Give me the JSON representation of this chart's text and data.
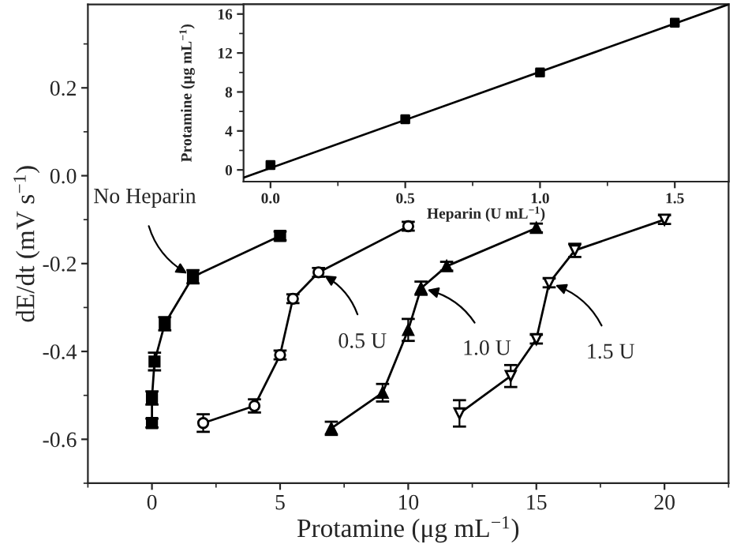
{
  "chart_data": [
    {
      "type": "line",
      "xlabel": "Protamine (μg mL$^{−1}$)",
      "ylabel": "dE/dt (mV s$^{−1}$)",
      "xlim": [
        -2.5,
        22.5
      ],
      "ylim": [
        -0.7,
        0.39
      ],
      "xticks": [
        0,
        5,
        10,
        15,
        20
      ],
      "yticks": [
        {
          "value": -0.6,
          "label": "-0.6"
        },
        {
          "value": -0.4,
          "label": "-0.4"
        },
        {
          "value": -0.2,
          "label": "-0.2"
        },
        {
          "value": 0.0,
          "label": "0.0"
        },
        {
          "value": 0.2,
          "label": "0.2"
        }
      ],
      "grid": false,
      "legend": false,
      "line_style": "solid",
      "series": [
        {
          "color": "#000000",
          "marker": "square",
          "x": [
            0,
            0,
            0.1,
            0.5,
            1.6,
            5
          ],
          "values": [
            -0.563,
            -0.506,
            -0.423,
            -0.337,
            -0.23,
            -0.137
          ],
          "errors": [
            0.01,
            0.015,
            0.02,
            0.015,
            0.015,
            0.01
          ]
        },
        {
          "color": "#000000",
          "marker": "circle",
          "x": [
            2,
            4,
            5,
            5.5,
            6.5,
            10
          ],
          "values": [
            -0.563,
            -0.524,
            -0.408,
            -0.28,
            -0.22,
            -0.115
          ],
          "errors": [
            0.02,
            0.015,
            0.01,
            0.01,
            0.01,
            0.01
          ]
        },
        {
          "color": "#000000",
          "marker": "triangle",
          "x": [
            7,
            9,
            10,
            10.5,
            11.5,
            15
          ],
          "values": [
            -0.575,
            -0.494,
            -0.351,
            -0.256,
            -0.206,
            -0.119
          ],
          "errors": [
            0.015,
            0.02,
            0.025,
            0.015,
            0.01,
            0.01
          ]
        },
        {
          "color": "#000000",
          "marker": "triangle_down",
          "x": [
            12,
            14,
            15,
            15.5,
            16.5,
            20
          ],
          "values": [
            -0.541,
            -0.456,
            -0.372,
            -0.244,
            -0.17,
            -0.1
          ],
          "errors": [
            0.03,
            0.025,
            0.01,
            0.01,
            0.015,
            0.01
          ]
        }
      ],
      "annotations": [
        {
          "text": "No Heparin",
          "x": 1.6,
          "y": -0.23
        },
        {
          "text": "0.5 U",
          "x": 6.5,
          "y": -0.22
        },
        {
          "text": "1.0 U",
          "x": 10.5,
          "y": -0.256
        },
        {
          "text": "1.5 U",
          "x": 15.5,
          "y": -0.244
        }
      ]
    },
    {
      "type": "line",
      "xlabel": "Heparin (U mL$^{−1}$)",
      "ylabel": "Protamine (μg mL$^{−1}$)",
      "xlim": [
        -0.1,
        1.7
      ],
      "ylim": [
        -1.2,
        17
      ],
      "xticks": [
        {
          "value": 0,
          "label": "0.0"
        },
        {
          "value": 0.5,
          "label": "0.5"
        },
        {
          "value": 1.0,
          "label": "1.0"
        },
        {
          "value": 1.5,
          "label": "1.5"
        }
      ],
      "yticks": [
        0,
        4,
        8,
        12,
        16
      ],
      "grid": false,
      "legend": false,
      "series": [
        {
          "type": "scatter",
          "color": "#000000",
          "marker": "square",
          "x": [
            0,
            0.5,
            1.0,
            1.5
          ],
          "values": [
            0.5,
            5.2,
            10.0,
            15.1
          ]
        },
        {
          "type": "line",
          "color": "#000000",
          "marker": "none",
          "x": [
            -0.1,
            1.7
          ],
          "values": [
            -0.8,
            17
          ]
        }
      ]
    }
  ]
}
